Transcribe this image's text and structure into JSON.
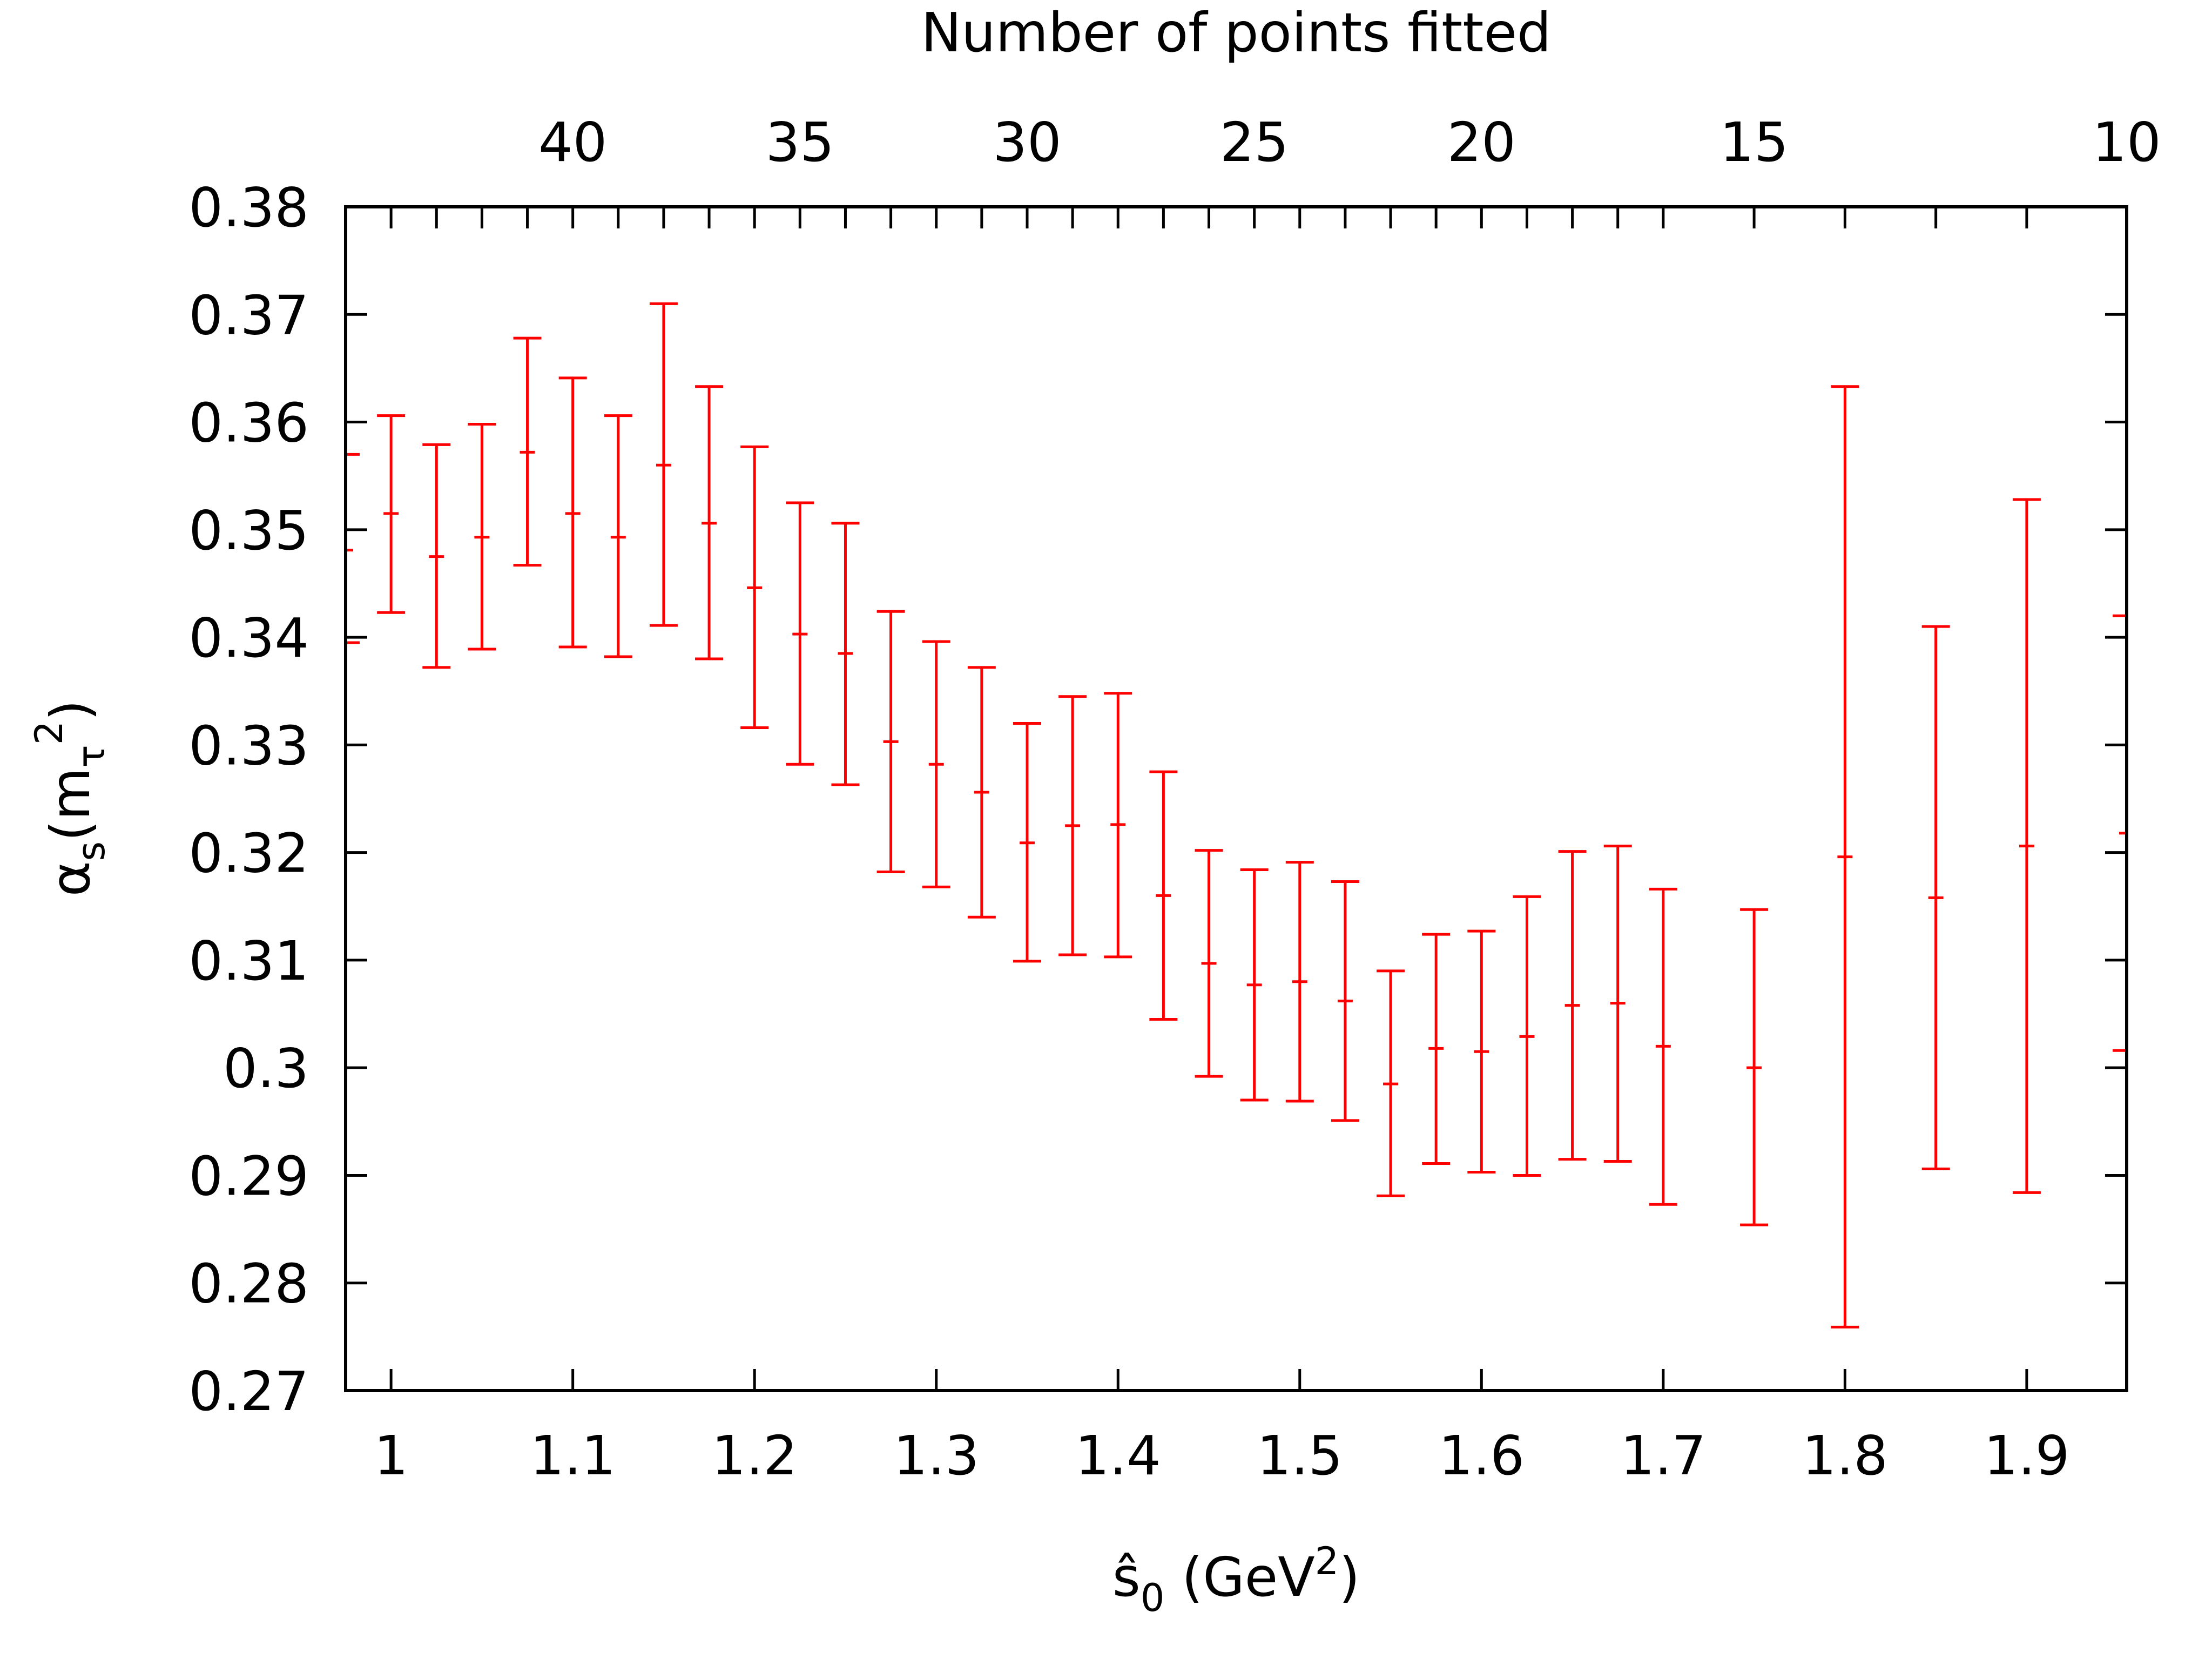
{
  "chart_data": {
    "type": "scatter",
    "xlabel": {
      "main": "ŝ",
      "sub": "0",
      "unit_prefix": " (GeV",
      "sup": "2",
      "unit_suffix": ")"
    },
    "ylabel": {
      "main": "α",
      "sub": "s",
      "paren_open": "(m",
      "sub2": "τ",
      "sup": "2",
      "paren_close": ")"
    },
    "top_xlabel": "Number of points fitted",
    "xlim": [
      0.975,
      1.955
    ],
    "ylim": [
      0.27,
      0.38
    ],
    "x_ticks": [
      {
        "v": 1.0,
        "label": "1"
      },
      {
        "v": 1.1,
        "label": "1.1"
      },
      {
        "v": 1.2,
        "label": "1.2"
      },
      {
        "v": 1.3,
        "label": "1.3"
      },
      {
        "v": 1.4,
        "label": "1.4"
      },
      {
        "v": 1.5,
        "label": "1.5"
      },
      {
        "v": 1.6,
        "label": "1.6"
      },
      {
        "v": 1.7,
        "label": "1.7"
      },
      {
        "v": 1.8,
        "label": "1.8"
      },
      {
        "v": 1.9,
        "label": "1.9"
      }
    ],
    "y_ticks": [
      {
        "v": 0.27,
        "label": "0.27"
      },
      {
        "v": 0.28,
        "label": "0.28"
      },
      {
        "v": 0.29,
        "label": "0.29"
      },
      {
        "v": 0.3,
        "label": "0.3"
      },
      {
        "v": 0.31,
        "label": "0.31"
      },
      {
        "v": 0.32,
        "label": "0.32"
      },
      {
        "v": 0.33,
        "label": "0.33"
      },
      {
        "v": 0.34,
        "label": "0.34"
      },
      {
        "v": 0.35,
        "label": "0.35"
      },
      {
        "v": 0.36,
        "label": "0.36"
      },
      {
        "v": 0.37,
        "label": "0.37"
      },
      {
        "v": 0.38,
        "label": "0.38"
      }
    ],
    "top_ticks": [
      {
        "v": 1.0,
        "label": ""
      },
      {
        "v": 1.025,
        "label": ""
      },
      {
        "v": 1.05,
        "label": ""
      },
      {
        "v": 1.075,
        "label": ""
      },
      {
        "v": 1.1,
        "label": "40"
      },
      {
        "v": 1.125,
        "label": ""
      },
      {
        "v": 1.15,
        "label": ""
      },
      {
        "v": 1.175,
        "label": ""
      },
      {
        "v": 1.2,
        "label": ""
      },
      {
        "v": 1.225,
        "label": "35"
      },
      {
        "v": 1.25,
        "label": ""
      },
      {
        "v": 1.275,
        "label": ""
      },
      {
        "v": 1.3,
        "label": ""
      },
      {
        "v": 1.325,
        "label": ""
      },
      {
        "v": 1.35,
        "label": "30"
      },
      {
        "v": 1.375,
        "label": ""
      },
      {
        "v": 1.4,
        "label": ""
      },
      {
        "v": 1.425,
        "label": ""
      },
      {
        "v": 1.45,
        "label": ""
      },
      {
        "v": 1.475,
        "label": "25"
      },
      {
        "v": 1.5,
        "label": ""
      },
      {
        "v": 1.525,
        "label": ""
      },
      {
        "v": 1.55,
        "label": ""
      },
      {
        "v": 1.575,
        "label": ""
      },
      {
        "v": 1.6,
        "label": "20"
      },
      {
        "v": 1.625,
        "label": ""
      },
      {
        "v": 1.65,
        "label": ""
      },
      {
        "v": 1.675,
        "label": ""
      },
      {
        "v": 1.7,
        "label": ""
      },
      {
        "v": 1.75,
        "label": "15"
      },
      {
        "v": 1.8,
        "label": ""
      },
      {
        "v": 1.85,
        "label": ""
      },
      {
        "v": 1.9,
        "label": ""
      },
      {
        "v": 1.955,
        "label": "10"
      }
    ],
    "series": [
      {
        "color": "#ff0000",
        "points": [
          {
            "x": 0.975,
            "y": 0.3481,
            "lo": 0.3395,
            "hi": 0.357
          },
          {
            "x": 1.0,
            "y": 0.3515,
            "lo": 0.3423,
            "hi": 0.3606
          },
          {
            "x": 1.025,
            "y": 0.3475,
            "lo": 0.3372,
            "hi": 0.3579
          },
          {
            "x": 1.05,
            "y": 0.3493,
            "lo": 0.3389,
            "hi": 0.3598
          },
          {
            "x": 1.075,
            "y": 0.3572,
            "lo": 0.3467,
            "hi": 0.3678
          },
          {
            "x": 1.1,
            "y": 0.3515,
            "lo": 0.3391,
            "hi": 0.3641
          },
          {
            "x": 1.125,
            "y": 0.3493,
            "lo": 0.3382,
            "hi": 0.3606
          },
          {
            "x": 1.15,
            "y": 0.356,
            "lo": 0.3411,
            "hi": 0.371
          },
          {
            "x": 1.175,
            "y": 0.3506,
            "lo": 0.338,
            "hi": 0.3633
          },
          {
            "x": 1.2,
            "y": 0.3446,
            "lo": 0.3316,
            "hi": 0.3577
          },
          {
            "x": 1.225,
            "y": 0.3403,
            "lo": 0.3282,
            "hi": 0.3525
          },
          {
            "x": 1.25,
            "y": 0.3385,
            "lo": 0.3263,
            "hi": 0.3506
          },
          {
            "x": 1.275,
            "y": 0.3303,
            "lo": 0.3182,
            "hi": 0.3424
          },
          {
            "x": 1.3,
            "y": 0.3282,
            "lo": 0.3168,
            "hi": 0.3396
          },
          {
            "x": 1.325,
            "y": 0.3256,
            "lo": 0.314,
            "hi": 0.3372
          },
          {
            "x": 1.35,
            "y": 0.3209,
            "lo": 0.3099,
            "hi": 0.332
          },
          {
            "x": 1.375,
            "y": 0.3225,
            "lo": 0.3105,
            "hi": 0.3345
          },
          {
            "x": 1.4,
            "y": 0.3226,
            "lo": 0.3103,
            "hi": 0.3348
          },
          {
            "x": 1.425,
            "y": 0.316,
            "lo": 0.3045,
            "hi": 0.3275
          },
          {
            "x": 1.45,
            "y": 0.3097,
            "lo": 0.2992,
            "hi": 0.3202
          },
          {
            "x": 1.475,
            "y": 0.3077,
            "lo": 0.297,
            "hi": 0.3184
          },
          {
            "x": 1.5,
            "y": 0.308,
            "lo": 0.2969,
            "hi": 0.3191
          },
          {
            "x": 1.525,
            "y": 0.3062,
            "lo": 0.2951,
            "hi": 0.3173
          },
          {
            "x": 1.55,
            "y": 0.2985,
            "lo": 0.2881,
            "hi": 0.309
          },
          {
            "x": 1.575,
            "y": 0.3018,
            "lo": 0.2911,
            "hi": 0.3124
          },
          {
            "x": 1.6,
            "y": 0.3015,
            "lo": 0.2903,
            "hi": 0.3127
          },
          {
            "x": 1.625,
            "y": 0.3029,
            "lo": 0.29,
            "hi": 0.3159
          },
          {
            "x": 1.65,
            "y": 0.3058,
            "lo": 0.2915,
            "hi": 0.3201
          },
          {
            "x": 1.675,
            "y": 0.306,
            "lo": 0.2913,
            "hi": 0.3206
          },
          {
            "x": 1.7,
            "y": 0.302,
            "lo": 0.2873,
            "hi": 0.3166
          },
          {
            "x": 1.75,
            "y": 0.3,
            "lo": 0.2854,
            "hi": 0.3147
          },
          {
            "x": 1.8,
            "y": 0.3196,
            "lo": 0.2759,
            "hi": 0.3633
          },
          {
            "x": 1.85,
            "y": 0.3158,
            "lo": 0.2906,
            "hi": 0.341
          },
          {
            "x": 1.9,
            "y": 0.3206,
            "lo": 0.2884,
            "hi": 0.3528
          },
          {
            "x": 1.955,
            "y": 0.3218,
            "lo": 0.3016,
            "hi": 0.342
          }
        ]
      }
    ]
  }
}
